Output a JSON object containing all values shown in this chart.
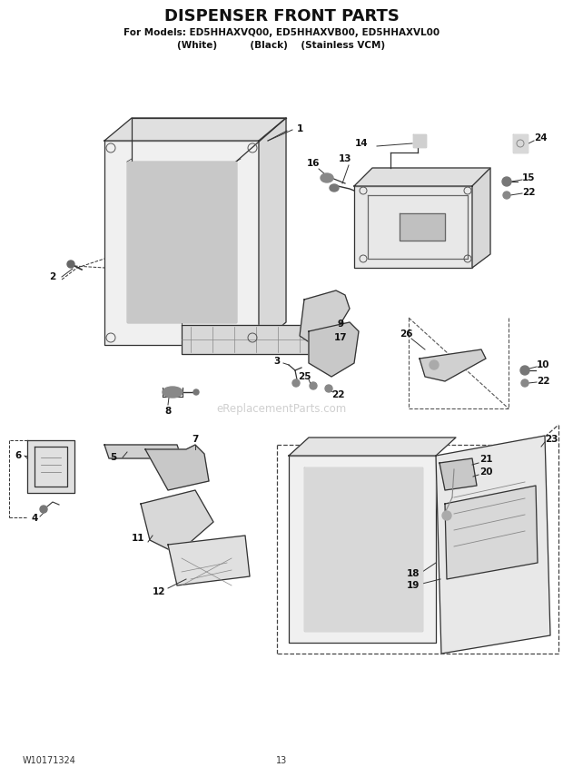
{
  "title": "DISPENSER FRONT PARTS",
  "subtitle1": "For Models: ED5HHAXVQ00, ED5HHAXVB00, ED5HHAXVL00",
  "subtitle2": "(White)          (Black)    (Stainless VCM)",
  "footer_left": "W10171324",
  "footer_center": "13",
  "bg_color": "#ffffff",
  "watermark": "eReplacementParts.com",
  "line_color": "#333333",
  "lw": 0.9
}
